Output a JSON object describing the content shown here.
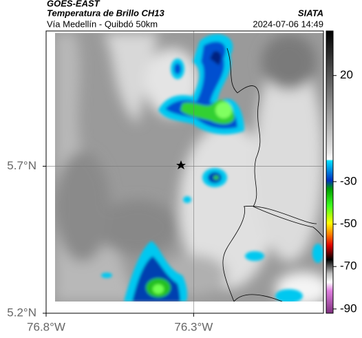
{
  "header": {
    "title": "GOES-EAST",
    "subtitle": "Temperatura de Brillo CH13",
    "source": "SIATA",
    "route": "Vía Medellín - Quibdó 50km",
    "datetime": "2024-07-06 14:49"
  },
  "map": {
    "xlim": [
      -76.8,
      -75.86
    ],
    "ylim": [
      5.2,
      6.16
    ],
    "xticks": [
      {
        "value": -76.8,
        "label": "76.8°W"
      },
      {
        "value": -76.3,
        "label": "76.3°W"
      }
    ],
    "yticks": [
      {
        "value": 5.2,
        "label": "5.2°N"
      },
      {
        "value": 5.7,
        "label": "5.7°N"
      }
    ],
    "colorbar": {
      "lim": [
        -92,
        41
      ],
      "ticks": [
        20,
        -30,
        -50,
        -70,
        -90
      ]
    }
  }
}
